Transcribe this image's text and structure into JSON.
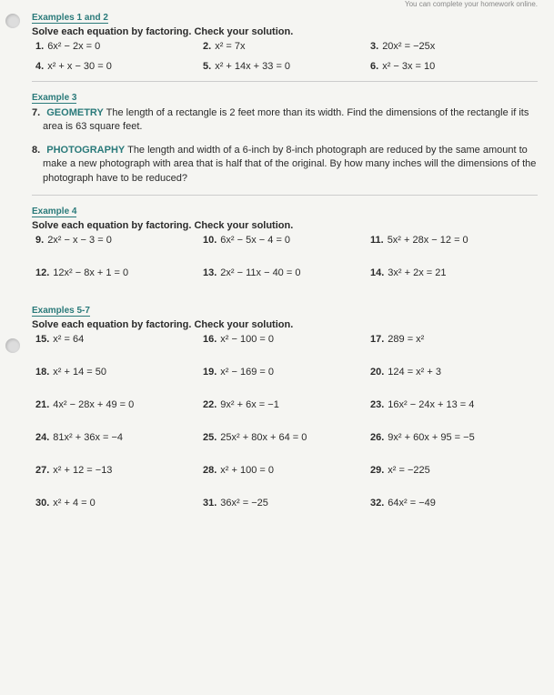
{
  "header_note": "You can complete your homework online.",
  "examples12": {
    "label": "Examples 1 and 2",
    "instruction": "Solve each equation by factoring. Check your solution.",
    "problems": {
      "p1": "1.",
      "e1": "6x² − 2x = 0",
      "p2": "2.",
      "e2": "x² = 7x",
      "p3": "3.",
      "e3": "20x² = −25x",
      "p4": "4.",
      "e4": "x² + x − 30 = 0",
      "p5": "5.",
      "e5": "x² + 14x + 33 = 0",
      "p6": "6.",
      "e6": "x² − 3x = 10"
    }
  },
  "example3": {
    "label": "Example 3",
    "p7": {
      "num": "7.",
      "topic": "GEOMETRY",
      "text": "The length of a rectangle is 2 feet more than its width. Find the dimensions of the rectangle if its area is 63 square feet."
    },
    "p8": {
      "num": "8.",
      "topic": "PHOTOGRAPHY",
      "text": "The length and width of a 6-inch by 8-inch photograph are reduced by the same amount to make a new photograph with area that is half that of the original. By how many inches will the dimensions of the photograph have to be reduced?"
    }
  },
  "example4": {
    "label": "Example 4",
    "instruction": "Solve each equation by factoring. Check your solution.",
    "problems": {
      "p9": "9.",
      "e9": "2x² − x − 3 = 0",
      "p10": "10.",
      "e10": "6x² − 5x − 4 = 0",
      "p11": "11.",
      "e11": "5x² + 28x − 12 = 0",
      "p12": "12.",
      "e12": "12x² − 8x + 1 = 0",
      "p13": "13.",
      "e13": "2x² − 11x − 40 = 0",
      "p14": "14.",
      "e14": "3x² + 2x = 21"
    }
  },
  "examples57": {
    "label": "Examples 5-7",
    "instruction": "Solve each equation by factoring. Check your solution.",
    "problems": {
      "p15": "15.",
      "e15": "x² = 64",
      "p16": "16.",
      "e16": "x² − 100 = 0",
      "p17": "17.",
      "e17": "289 = x²",
      "p18": "18.",
      "e18": "x² + 14 = 50",
      "p19": "19.",
      "e19": "x² − 169 = 0",
      "p20": "20.",
      "e20": "124 = x² + 3",
      "p21": "21.",
      "e21": "4x² − 28x + 49 = 0",
      "p22": "22.",
      "e22": "9x² + 6x = −1",
      "p23": "23.",
      "e23": "16x² − 24x + 13 = 4",
      "p24": "24.",
      "e24": "81x² + 36x = −4",
      "p25": "25.",
      "e25": "25x² + 80x + 64 = 0",
      "p26": "26.",
      "e26": "9x² + 60x + 95 = −5",
      "p27": "27.",
      "e27": "x² + 12 = −13",
      "p28": "28.",
      "e28": "x² + 100 = 0",
      "p29": "29.",
      "e29": "x² = −225",
      "p30": "30.",
      "e30": "x² + 4 = 0",
      "p31": "31.",
      "e31": "36x² = −25",
      "p32": "32.",
      "e32": "64x² = −49"
    }
  }
}
